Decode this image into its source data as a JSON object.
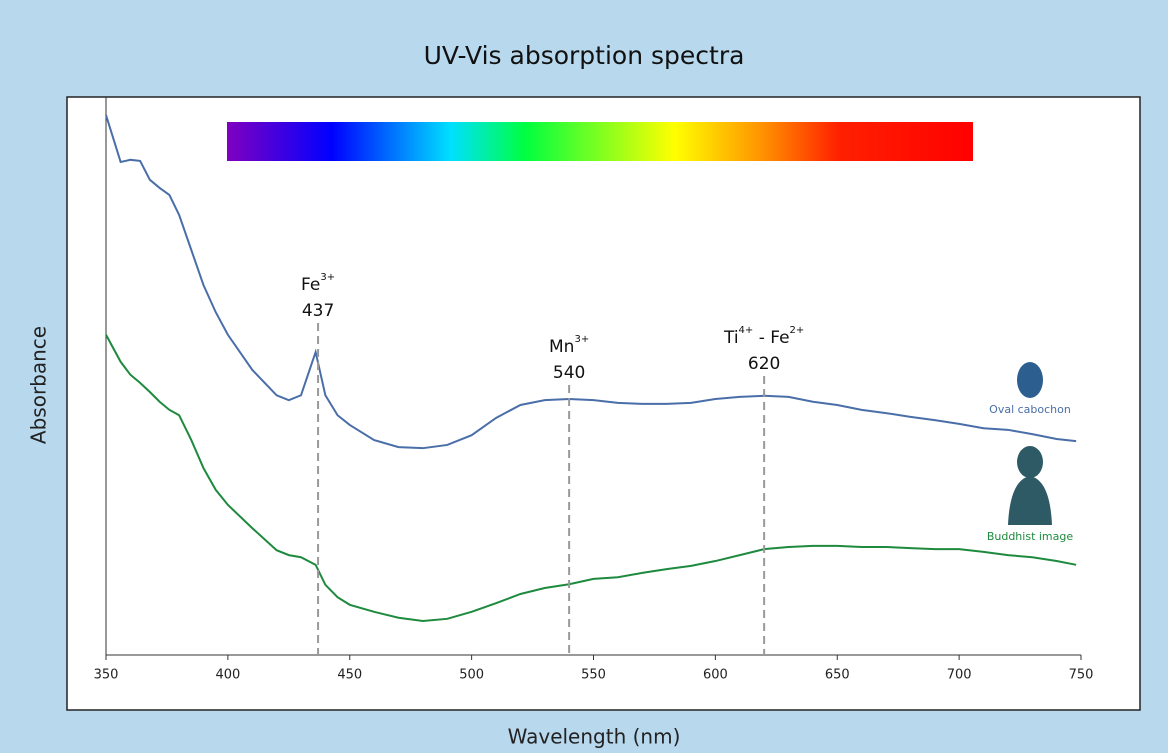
{
  "chart_data": {
    "type": "line",
    "title": "UV-Vis absorption spectra",
    "x_label": "Wavelength (nm)",
    "y_label": "Absorbance",
    "x": [
      350,
      356,
      360,
      364,
      368,
      372,
      376,
      380,
      385,
      390,
      395,
      400,
      410,
      420,
      425,
      430,
      436,
      440,
      445,
      450,
      460,
      470,
      480,
      490,
      500,
      510,
      520,
      530,
      540,
      550,
      560,
      570,
      580,
      590,
      600,
      610,
      620,
      630,
      640,
      650,
      660,
      670,
      680,
      690,
      700,
      710,
      720,
      730,
      740,
      748
    ],
    "xlim": [
      350,
      750
    ],
    "xticks": [
      350,
      400,
      450,
      500,
      550,
      600,
      650,
      700,
      750
    ],
    "ylim": [
      0,
      100
    ],
    "series": [
      {
        "name": "Oval cabochon",
        "color": "#4a6ea8",
        "values": [
          100,
          91.3,
          91.7,
          91.5,
          88.0,
          86.5,
          85.2,
          81.5,
          75.0,
          68.5,
          63.5,
          59.3,
          52.8,
          48.1,
          47.2,
          48.1,
          56.1,
          48.1,
          44.4,
          42.6,
          39.8,
          38.5,
          38.3,
          38.9,
          40.7,
          43.9,
          46.3,
          47.2,
          47.4,
          47.2,
          46.7,
          46.5,
          46.5,
          46.7,
          47.4,
          47.8,
          48.0,
          47.8,
          46.9,
          46.3,
          45.4,
          44.8,
          44.1,
          43.5,
          42.8,
          42.0,
          41.7,
          40.9,
          40.0,
          39.6
        ]
      },
      {
        "name": "Buddhist image",
        "color": "#1e8a3e",
        "values": [
          59.3,
          54.3,
          51.9,
          50.4,
          48.7,
          46.9,
          45.4,
          44.4,
          39.8,
          34.6,
          30.6,
          27.8,
          23.5,
          19.4,
          18.5,
          18.1,
          16.7,
          13.0,
          10.7,
          9.3,
          8.0,
          6.9,
          6.3,
          6.7,
          8.0,
          9.6,
          11.3,
          12.4,
          13.1,
          14.1,
          14.4,
          15.2,
          15.9,
          16.5,
          17.4,
          18.5,
          19.6,
          20.0,
          20.2,
          20.2,
          20.0,
          20.0,
          19.8,
          19.6,
          19.6,
          19.1,
          18.5,
          18.1,
          17.4,
          16.7
        ]
      }
    ],
    "annotations": [
      {
        "x": 437,
        "ion": [
          "Fe",
          "3+"
        ]
      },
      {
        "x": 540,
        "ion": [
          "Mn",
          "3+"
        ]
      },
      {
        "x": 620,
        "ion": [
          "Ti",
          "4+",
          " - Fe",
          "2+"
        ]
      }
    ]
  }
}
